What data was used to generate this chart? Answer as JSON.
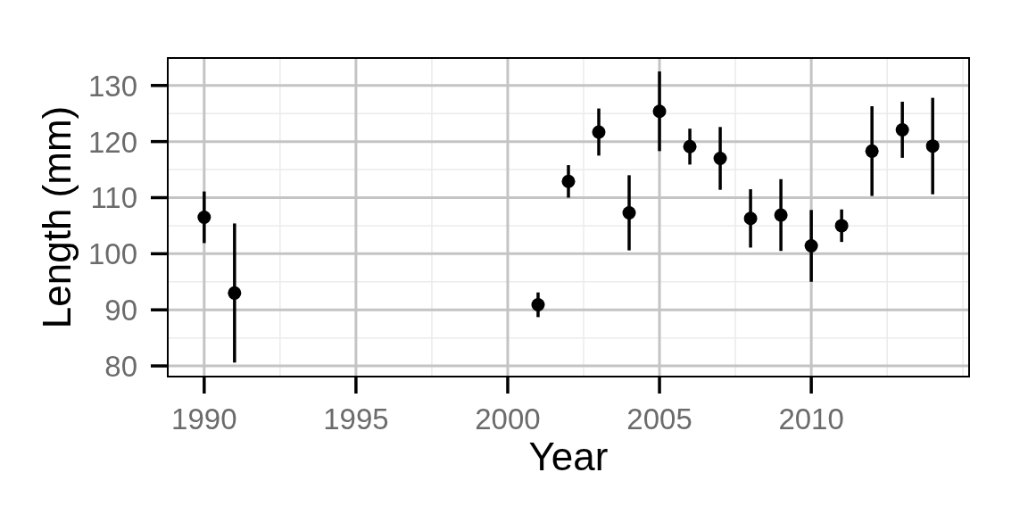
{
  "chart_data": {
    "type": "scatter",
    "xlabel": "Year",
    "ylabel": "Length (mm)",
    "x": [
      1990,
      1991,
      2001,
      2002,
      2003,
      2004,
      2005,
      2006,
      2007,
      2008,
      2009,
      2010,
      2011,
      2012,
      2013,
      2014
    ],
    "values": [
      106.5,
      93,
      90.9,
      112.9,
      121.7,
      107.3,
      125.4,
      119.1,
      117,
      106.3,
      106.9,
      101.4,
      105,
      118.3,
      122.1,
      119.2
    ],
    "errors": [
      4.6,
      12.4,
      2.2,
      2.9,
      4.2,
      6.7,
      7.1,
      3.2,
      5.6,
      5.2,
      6.4,
      6.4,
      2.9,
      8,
      5,
      8.6
    ],
    "color": "#000000",
    "marker": "circle",
    "xlim": [
      1988.8,
      2015.2
    ],
    "ylim": [
      78.1,
      134.9
    ],
    "xticks": [
      1990,
      {
        "value": 1992.5,
        "label": null
      },
      1995,
      {
        "value": 1997.5,
        "label": null
      },
      2000,
      {
        "value": 2002.5,
        "label": null
      },
      2005,
      {
        "value": 2007.5,
        "label": null
      },
      2010,
      {
        "value": 2012.5,
        "label": null
      },
      {
        "value": 2015,
        "label": null
      }
    ],
    "yticks": [
      80,
      {
        "value": 85,
        "label": null
      },
      90,
      {
        "value": 95,
        "label": null
      },
      100,
      {
        "value": 105,
        "label": null
      },
      110,
      {
        "value": 115,
        "label": null
      },
      120,
      {
        "value": 125,
        "label": null
      },
      130
    ],
    "grid": true
  }
}
